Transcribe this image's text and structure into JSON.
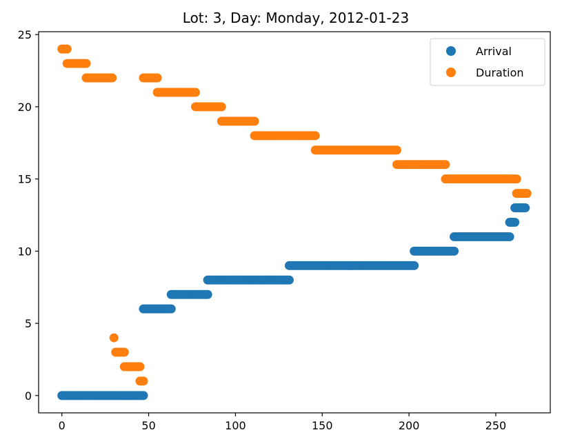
{
  "chart_data": {
    "type": "scatter",
    "title": "Lot: 3, Day: Monday, 2012-01-23",
    "xlabel": "",
    "ylabel": "",
    "xlim": [
      -13.4,
      281.4
    ],
    "ylim": [
      -1.2,
      25.2
    ],
    "xticks": [
      0,
      50,
      100,
      150,
      200,
      250
    ],
    "yticks": [
      0,
      5,
      10,
      15,
      20,
      25
    ],
    "grid": false,
    "legend_position": "top-right",
    "series": [
      {
        "name": "Arrival",
        "color": "#1f77b4",
        "segments": [
          {
            "y": 0,
            "x_start": 0,
            "x_end": 47
          },
          {
            "y": 6,
            "x_start": 47,
            "x_end": 63
          },
          {
            "y": 7,
            "x_start": 63,
            "x_end": 84
          },
          {
            "y": 8,
            "x_start": 84,
            "x_end": 131
          },
          {
            "y": 9,
            "x_start": 131,
            "x_end": 203
          },
          {
            "y": 10,
            "x_start": 203,
            "x_end": 226
          },
          {
            "y": 11,
            "x_start": 226,
            "x_end": 258
          },
          {
            "y": 12,
            "x_start": 258,
            "x_end": 261
          },
          {
            "y": 13,
            "x_start": 261,
            "x_end": 267
          }
        ]
      },
      {
        "name": "Duration",
        "color": "#ff7f0e",
        "segments": [
          {
            "y": 24,
            "x_start": 0,
            "x_end": 3
          },
          {
            "y": 23,
            "x_start": 3,
            "x_end": 14
          },
          {
            "y": 22,
            "x_start": 14,
            "x_end": 29
          },
          {
            "y": 4,
            "x_start": 30,
            "x_end": 30
          },
          {
            "y": 3,
            "x_start": 31,
            "x_end": 36
          },
          {
            "y": 2,
            "x_start": 36,
            "x_end": 45
          },
          {
            "y": 1,
            "x_start": 45,
            "x_end": 47
          },
          {
            "y": 22,
            "x_start": 47,
            "x_end": 55
          },
          {
            "y": 21,
            "x_start": 55,
            "x_end": 77
          },
          {
            "y": 20,
            "x_start": 77,
            "x_end": 92
          },
          {
            "y": 19,
            "x_start": 92,
            "x_end": 111
          },
          {
            "y": 18,
            "x_start": 111,
            "x_end": 146
          },
          {
            "y": 17,
            "x_start": 146,
            "x_end": 193
          },
          {
            "y": 16,
            "x_start": 193,
            "x_end": 221
          },
          {
            "y": 15,
            "x_start": 221,
            "x_end": 262
          },
          {
            "y": 14,
            "x_start": 262,
            "x_end": 268
          }
        ]
      }
    ]
  }
}
